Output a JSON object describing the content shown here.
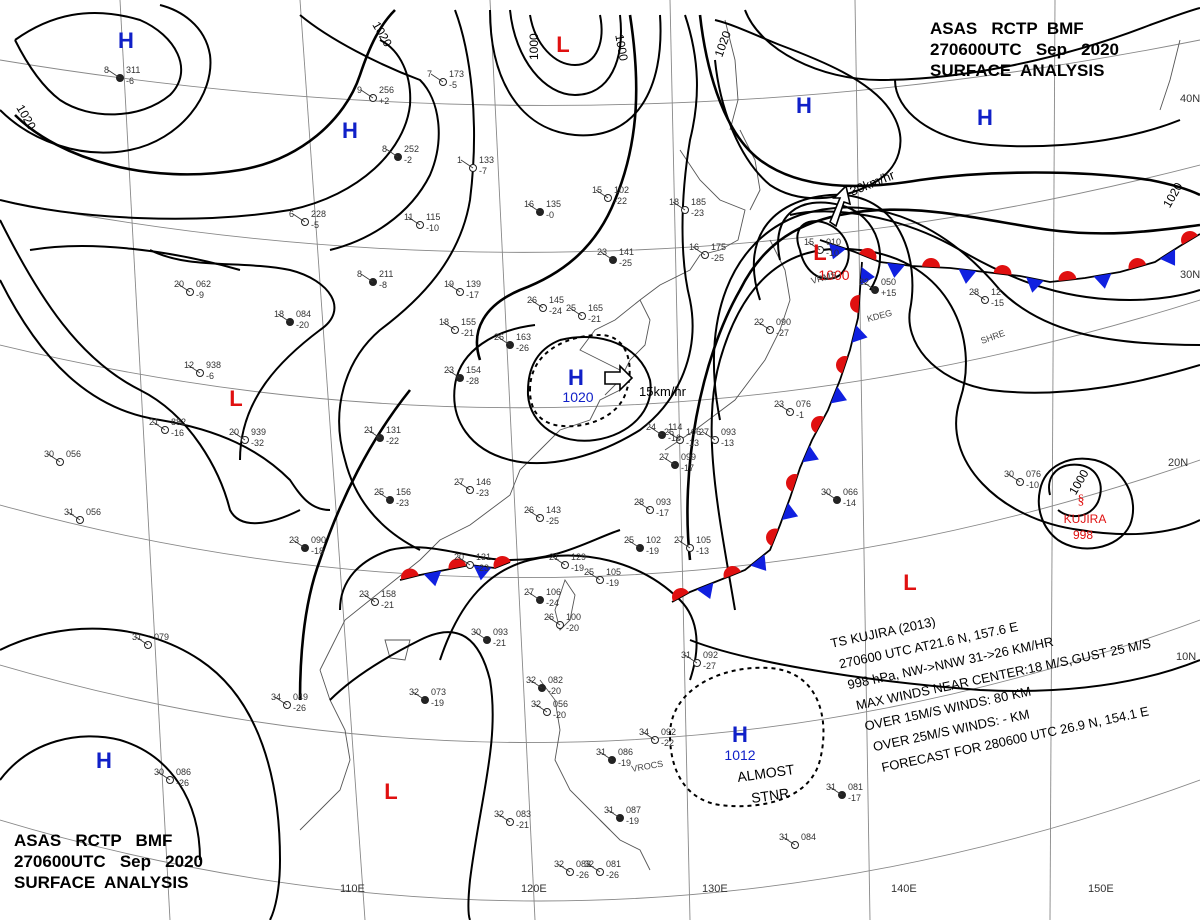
{
  "header_top": {
    "line1": "ASAS   RCTP  BMF",
    "line2": "270600UTC   Sep   2020",
    "line3": "SURFACE  ANALYSIS"
  },
  "header_bottom": {
    "line1": "ASAS   RCTP   BMF",
    "line2": "270600UTC   Sep   2020",
    "line3": "SURFACE  ANALYSIS"
  },
  "pressure_centers": [
    {
      "type": "H",
      "color": "#1020c8"
    },
    {
      "type": "H",
      "color": "#1020c8"
    },
    {
      "type": "L",
      "color": "#e01010"
    },
    {
      "type": "H",
      "color": "#1020c8"
    },
    {
      "type": "H",
      "color": "#1020c8"
    },
    {
      "type": "L",
      "color": "#e01010",
      "value": "1000"
    },
    {
      "type": "L",
      "color": "#e01010"
    },
    {
      "type": "H",
      "color": "#1020c8",
      "value": "1020"
    },
    {
      "type": "L",
      "color": "#e01010"
    },
    {
      "type": "H",
      "color": "#1020c8"
    },
    {
      "type": "L",
      "color": "#e01010"
    },
    {
      "type": "H",
      "color": "#1020c8",
      "value": "1012"
    }
  ],
  "isobar_labels": [
    "1020",
    "1020",
    "1000",
    "1000",
    "1020",
    "1020",
    "1000"
  ],
  "motion_labels": [
    "30km/hr",
    "15km/hr"
  ],
  "stationary_note": [
    "ALMOST",
    "STNR"
  ],
  "cyclone": {
    "name": "KUJIRA",
    "pressure": "998",
    "symbol": "§",
    "color": "#e01010"
  },
  "tropical_storm_text": [
    "TS  KUJIRA  (2013)",
    "270600 UTC  AT21.6 N, 157.6 E",
    "998 hPa, NW->NNW  31->26 KM/HR",
    "MAX WINDS NEAR CENTER:18 M/S,GUST 25 M/S",
    "OVER 15M/S WINDS: 80 KM",
    "OVER 25M/S WINDS: - KM",
    "FORECAST FOR 280600 UTC 26.9 N, 154.1 E"
  ],
  "longitude_labels": [
    "110E",
    "120E",
    "130E",
    "140E",
    "150E"
  ],
  "latitude_labels": [
    "40N",
    "30N",
    "20N",
    "10N"
  ],
  "stations": [
    {
      "t": "8",
      "p": "311",
      "d": "-6"
    },
    {
      "t": "7",
      "p": "173",
      "d": "-5"
    },
    {
      "t": "9",
      "p": "256",
      "d": "+2"
    },
    {
      "t": "8",
      "p": "252",
      "d": "-2"
    },
    {
      "t": "1",
      "p": "133",
      "d": "-7"
    },
    {
      "t": "15",
      "p": "102",
      "d": "-22"
    },
    {
      "t": "16",
      "p": "135",
      "d": "-0"
    },
    {
      "t": "18",
      "p": "185",
      "d": "-23"
    },
    {
      "t": "16",
      "p": "175",
      "d": "-25"
    },
    {
      "t": "23",
      "p": "141",
      "d": "-25"
    },
    {
      "t": "11",
      "p": "115",
      "d": "-10"
    },
    {
      "t": "6",
      "p": "228",
      "d": "-5"
    },
    {
      "t": "8",
      "p": "211",
      "d": "-8"
    },
    {
      "t": "19",
      "p": "139",
      "d": "-17"
    },
    {
      "t": "20",
      "p": "062",
      "d": "-9"
    },
    {
      "t": "18",
      "p": "084",
      "d": "-20"
    },
    {
      "t": "18",
      "p": "155",
      "d": "-21"
    },
    {
      "t": "26",
      "p": "145",
      "d": "-24"
    },
    {
      "t": "26",
      "p": "163",
      "d": "-26"
    },
    {
      "t": "25",
      "p": "165",
      "d": "-21"
    },
    {
      "t": "12",
      "p": "938",
      "d": "-6"
    },
    {
      "t": "23",
      "p": "154",
      "d": "-28"
    },
    {
      "t": "21",
      "p": "882",
      "d": "-16"
    },
    {
      "t": "20",
      "p": "939",
      "d": "-32"
    },
    {
      "t": "21",
      "p": "131",
      "d": "-22"
    },
    {
      "t": "30",
      "p": "056",
      "d": ""
    },
    {
      "t": "31",
      "p": "056",
      "d": ""
    },
    {
      "t": "25",
      "p": "156",
      "d": "-23"
    },
    {
      "t": "27",
      "p": "146",
      "d": "-23"
    },
    {
      "t": "26",
      "p": "143",
      "d": "-25"
    },
    {
      "t": "23",
      "p": "090",
      "d": "-18"
    },
    {
      "t": "20",
      "p": "131",
      "d": "-23"
    },
    {
      "t": "21",
      "p": "129",
      "d": "-19"
    },
    {
      "t": "25",
      "p": "102",
      "d": "-19"
    },
    {
      "t": "27",
      "p": "105",
      "d": "-13"
    },
    {
      "t": "25",
      "p": "105",
      "d": "-19"
    },
    {
      "t": "27",
      "p": "106",
      "d": "-24"
    },
    {
      "t": "26",
      "p": "100",
      "d": "-20"
    },
    {
      "t": "23",
      "p": "158",
      "d": "-21"
    },
    {
      "t": "30",
      "p": "093",
      "d": "-21"
    },
    {
      "t": "31",
      "p": "079",
      "d": ""
    },
    {
      "t": "34",
      "p": "049",
      "d": "-26"
    },
    {
      "t": "32",
      "p": "073",
      "d": "-19"
    },
    {
      "t": "30",
      "p": "086",
      "d": "-26"
    },
    {
      "t": "28",
      "p": "093",
      "d": "-17"
    },
    {
      "t": "27",
      "p": "099",
      "d": "-17"
    },
    {
      "t": "26",
      "p": "106",
      "d": "-13"
    },
    {
      "t": "27",
      "p": "093",
      "d": "-13"
    },
    {
      "t": "24",
      "p": "114",
      "d": "-16"
    },
    {
      "t": "23",
      "p": "076",
      "d": "-1"
    },
    {
      "t": "22",
      "p": "090",
      "d": "-27"
    },
    {
      "t": "22",
      "p": "050",
      "d": "+15"
    },
    {
      "t": "15",
      "p": "010",
      "d": "-10"
    },
    {
      "t": "28",
      "p": "12",
      "d": "-15"
    },
    {
      "t": "30",
      "p": "066",
      "d": "-14"
    },
    {
      "t": "30",
      "p": "076",
      "d": "-10"
    },
    {
      "t": "31",
      "p": "092",
      "d": "-27"
    },
    {
      "t": "32",
      "p": "082",
      "d": "-20"
    },
    {
      "t": "32",
      "p": "056",
      "d": "-20"
    },
    {
      "t": "34",
      "p": "092",
      "d": "-22"
    },
    {
      "t": "31",
      "p": "086",
      "d": "-19"
    },
    {
      "t": "32",
      "p": "083",
      "d": "-21"
    },
    {
      "t": "31",
      "p": "084",
      "d": ""
    },
    {
      "t": "31",
      "p": "081",
      "d": "-17"
    },
    {
      "t": "32",
      "p": "083",
      "d": "-26"
    },
    {
      "t": "32",
      "p": "081",
      "d": "-26"
    },
    {
      "t": "31",
      "p": "087",
      "d": "-19"
    }
  ],
  "station_ids": [
    "VRMS",
    "KDEG",
    "VROCS",
    "SHRE"
  ],
  "colors": {
    "isobar": "#000000",
    "grid": "#888888",
    "coast": "#555555",
    "high": "#1020c8",
    "low": "#e01010",
    "front_cold": "#1020e0",
    "front_warm": "#e01010"
  }
}
